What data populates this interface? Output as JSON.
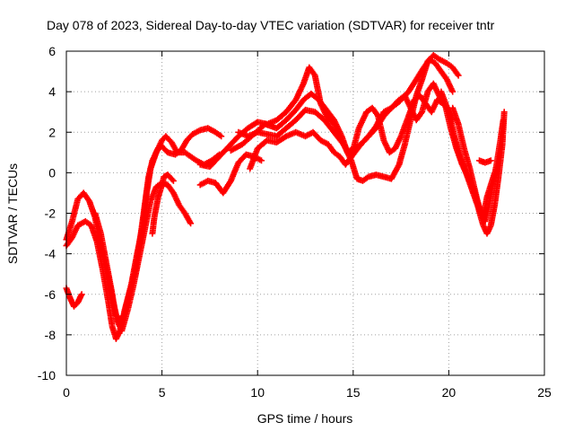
{
  "chart_data": {
    "type": "scatter",
    "title": "Day 078 of 2023, Sidereal Day-to-day VTEC variation (SDTVAR) for receiver tntr",
    "xlabel": "GPS time / hours",
    "ylabel": "SDTVAR / TECUs",
    "xlim": [
      0,
      25
    ],
    "ylim": [
      -10,
      6
    ],
    "xticks": [
      0,
      5,
      10,
      15,
      20,
      25
    ],
    "yticks": [
      -10,
      -8,
      -6,
      -4,
      -2,
      0,
      2,
      4,
      6
    ],
    "grid": true,
    "marker": "plus",
    "color": "#ff0000",
    "series": [
      {
        "points": [
          [
            0.0,
            -3.3
          ],
          [
            0.3,
            -2.4
          ],
          [
            0.6,
            -1.3
          ],
          [
            0.9,
            -1.0
          ],
          [
            1.2,
            -1.4
          ],
          [
            1.5,
            -2.2
          ],
          [
            1.8,
            -3.6
          ],
          [
            2.1,
            -4.8
          ],
          [
            2.4,
            -6.2
          ],
          [
            2.6,
            -7.0
          ],
          [
            2.8,
            -7.3
          ],
          [
            3.0,
            -7.0
          ],
          [
            3.3,
            -6.0
          ],
          [
            3.6,
            -4.8
          ],
          [
            3.9,
            -3.0
          ],
          [
            4.1,
            -1.6
          ],
          [
            4.3,
            -0.2
          ],
          [
            4.5,
            0.6
          ],
          [
            4.8,
            1.2
          ],
          [
            5.0,
            1.3
          ],
          [
            5.3,
            1.0
          ],
          [
            5.7,
            0.9
          ],
          [
            6.0,
            1.1
          ],
          [
            6.3,
            1.6
          ],
          [
            6.6,
            1.9
          ],
          [
            7.0,
            2.1
          ],
          [
            7.4,
            2.2
          ],
          [
            7.8,
            2.0
          ],
          [
            8.1,
            1.8
          ]
        ]
      },
      {
        "points": [
          [
            0.0,
            -3.6
          ],
          [
            0.3,
            -3.2
          ],
          [
            0.6,
            -2.6
          ],
          [
            1.0,
            -2.4
          ],
          [
            1.3,
            -2.6
          ],
          [
            1.6,
            -3.4
          ],
          [
            1.9,
            -4.8
          ],
          [
            2.2,
            -6.4
          ],
          [
            2.4,
            -7.6
          ],
          [
            2.6,
            -8.2
          ],
          [
            2.8,
            -7.8
          ],
          [
            3.1,
            -6.6
          ],
          [
            3.4,
            -5.5
          ],
          [
            3.7,
            -4.0
          ],
          [
            4.0,
            -2.6
          ],
          [
            4.2,
            -1.0
          ],
          [
            4.4,
            0.2
          ],
          [
            4.7,
            1.0
          ],
          [
            5.0,
            1.6
          ],
          [
            5.2,
            1.8
          ],
          [
            5.5,
            1.5
          ],
          [
            5.8,
            1.0
          ],
          [
            6.2,
            1.0
          ],
          [
            6.5,
            0.8
          ],
          [
            6.8,
            0.6
          ],
          [
            7.2,
            0.4
          ],
          [
            7.6,
            0.6
          ],
          [
            8.0,
            0.9
          ]
        ]
      },
      {
        "points": [
          [
            0.0,
            -5.7
          ],
          [
            0.2,
            -6.2
          ],
          [
            0.4,
            -6.6
          ],
          [
            0.6,
            -6.4
          ],
          [
            0.8,
            -6.0
          ]
        ]
      },
      {
        "points": [
          [
            1.5,
            -2.0
          ],
          [
            1.8,
            -3.0
          ],
          [
            2.1,
            -4.5
          ],
          [
            2.4,
            -6.0
          ],
          [
            2.6,
            -7.2
          ],
          [
            2.9,
            -7.8
          ],
          [
            3.2,
            -6.8
          ],
          [
            3.5,
            -5.6
          ],
          [
            3.8,
            -4.2
          ],
          [
            4.1,
            -2.8
          ],
          [
            4.4,
            -1.4
          ],
          [
            4.7,
            -0.7
          ],
          [
            5.0,
            -0.5
          ],
          [
            5.3,
            -0.6
          ],
          [
            5.6,
            -1.0
          ],
          [
            5.9,
            -1.6
          ],
          [
            6.2,
            -2.0
          ],
          [
            6.5,
            -2.5
          ]
        ]
      },
      {
        "points": [
          [
            4.5,
            -3.0
          ],
          [
            4.6,
            -2.2
          ],
          [
            4.8,
            -1.2
          ],
          [
            5.0,
            -0.6
          ],
          [
            5.1,
            -0.2
          ],
          [
            5.3,
            -0.1
          ],
          [
            5.6,
            -0.4
          ]
        ]
      },
      {
        "points": [
          [
            7.0,
            -0.6
          ],
          [
            7.4,
            -0.4
          ],
          [
            7.8,
            -0.5
          ],
          [
            8.2,
            -1.0
          ],
          [
            8.6,
            -0.4
          ],
          [
            9.0,
            0.5
          ],
          [
            9.4,
            0.9
          ],
          [
            9.8,
            0.8
          ],
          [
            10.2,
            0.6
          ]
        ]
      },
      {
        "points": [
          [
            7.0,
            0.4
          ],
          [
            7.5,
            0.3
          ],
          [
            8.0,
            0.8
          ],
          [
            8.5,
            1.3
          ],
          [
            9.0,
            1.8
          ],
          [
            9.5,
            2.2
          ],
          [
            10.0,
            2.5
          ],
          [
            10.5,
            2.4
          ],
          [
            11.0,
            2.6
          ],
          [
            11.5,
            3.0
          ],
          [
            12.0,
            3.6
          ],
          [
            12.4,
            4.4
          ],
          [
            12.7,
            5.2
          ],
          [
            13.0,
            4.8
          ],
          [
            13.3,
            3.4
          ],
          [
            13.6,
            2.8
          ],
          [
            14.0,
            2.4
          ],
          [
            14.3,
            1.8
          ],
          [
            14.6,
            1.2
          ],
          [
            14.9,
            0.6
          ],
          [
            15.2,
            -0.3
          ],
          [
            15.5,
            -0.4
          ],
          [
            15.8,
            -0.2
          ],
          [
            16.2,
            -0.1
          ],
          [
            16.6,
            -0.2
          ],
          [
            17.0,
            -0.3
          ],
          [
            17.4,
            0.4
          ],
          [
            17.7,
            1.4
          ],
          [
            18.0,
            2.6
          ],
          [
            18.3,
            3.8
          ],
          [
            18.6,
            4.6
          ],
          [
            18.9,
            5.5
          ],
          [
            19.2,
            5.8
          ],
          [
            19.5,
            5.6
          ],
          [
            19.9,
            5.4
          ],
          [
            20.2,
            5.2
          ],
          [
            20.5,
            4.8
          ]
        ]
      },
      {
        "points": [
          [
            8.6,
            1.1
          ],
          [
            9.2,
            1.4
          ],
          [
            9.8,
            1.9
          ],
          [
            10.4,
            2.4
          ],
          [
            11.0,
            2.2
          ],
          [
            11.5,
            2.6
          ],
          [
            12.0,
            3.1
          ],
          [
            12.4,
            3.6
          ],
          [
            12.8,
            3.9
          ],
          [
            13.2,
            3.6
          ],
          [
            13.6,
            3.1
          ],
          [
            14.0,
            2.6
          ],
          [
            14.4,
            1.8
          ],
          [
            14.7,
            1.0
          ],
          [
            15.0,
            1.2
          ],
          [
            15.4,
            1.4
          ],
          [
            15.8,
            1.8
          ],
          [
            16.2,
            2.2
          ],
          [
            16.6,
            2.8
          ],
          [
            17.0,
            3.2
          ],
          [
            17.4,
            3.6
          ],
          [
            17.7,
            3.8
          ],
          [
            18.0,
            3.2
          ],
          [
            18.3,
            2.6
          ],
          [
            18.6,
            3.0
          ],
          [
            18.9,
            4.0
          ],
          [
            19.2,
            4.4
          ],
          [
            19.5,
            3.8
          ],
          [
            19.9,
            3.2
          ],
          [
            20.2,
            2.6
          ]
        ]
      },
      {
        "points": [
          [
            9.0,
            2.0
          ],
          [
            9.5,
            1.8
          ],
          [
            10.0,
            2.0
          ],
          [
            10.5,
            1.9
          ],
          [
            11.0,
            1.8
          ],
          [
            11.5,
            2.2
          ],
          [
            12.0,
            2.6
          ],
          [
            12.5,
            3.1
          ],
          [
            13.0,
            3.0
          ],
          [
            13.5,
            2.6
          ],
          [
            14.0,
            2.0
          ],
          [
            14.5,
            1.4
          ],
          [
            14.9,
            0.8
          ],
          [
            15.3,
            2.2
          ],
          [
            15.7,
            3.0
          ],
          [
            16.0,
            3.2
          ],
          [
            16.3,
            2.8
          ],
          [
            16.6,
            1.6
          ],
          [
            16.9,
            1.0
          ],
          [
            17.2,
            1.2
          ],
          [
            17.5,
            1.8
          ],
          [
            17.9,
            2.8
          ],
          [
            18.2,
            3.6
          ],
          [
            18.5,
            3.8
          ],
          [
            18.8,
            3.4
          ],
          [
            19.1,
            3.0
          ],
          [
            19.4,
            3.6
          ],
          [
            19.7,
            3.4
          ]
        ]
      },
      {
        "points": [
          [
            9.6,
            0.2
          ],
          [
            10.0,
            1.2
          ],
          [
            10.5,
            1.6
          ],
          [
            11.0,
            1.5
          ],
          [
            11.5,
            1.8
          ],
          [
            12.0,
            2.0
          ],
          [
            12.5,
            1.8
          ],
          [
            12.9,
            2.0
          ],
          [
            13.3,
            1.6
          ],
          [
            13.7,
            1.4
          ],
          [
            14.0,
            1.0
          ],
          [
            14.3,
            0.8
          ],
          [
            14.6,
            0.4
          ],
          [
            15.0,
            0.9
          ],
          [
            15.4,
            1.4
          ],
          [
            15.8,
            1.8
          ],
          [
            16.2,
            2.3
          ],
          [
            16.6,
            3.0
          ],
          [
            17.0,
            3.2
          ],
          [
            17.4,
            3.5
          ],
          [
            17.9,
            4.0
          ],
          [
            18.3,
            4.6
          ],
          [
            18.7,
            5.2
          ],
          [
            19.0,
            5.6
          ],
          [
            19.3,
            5.4
          ],
          [
            19.6,
            5.0
          ],
          [
            19.9,
            4.6
          ],
          [
            20.2,
            4.0
          ]
        ]
      },
      {
        "points": [
          [
            19.6,
            4.0
          ],
          [
            20.0,
            3.0
          ],
          [
            20.3,
            1.8
          ],
          [
            20.6,
            0.8
          ],
          [
            20.9,
            0.0
          ],
          [
            21.2,
            -0.8
          ],
          [
            21.5,
            -1.6
          ],
          [
            21.8,
            -2.6
          ],
          [
            22.0,
            -3.0
          ],
          [
            22.2,
            -2.6
          ],
          [
            22.4,
            -1.6
          ],
          [
            22.6,
            -0.2
          ],
          [
            22.8,
            1.4
          ],
          [
            22.9,
            3.0
          ]
        ]
      },
      {
        "points": [
          [
            19.8,
            3.4
          ],
          [
            20.1,
            2.2
          ],
          [
            20.4,
            1.2
          ],
          [
            20.7,
            0.4
          ],
          [
            21.0,
            -0.2
          ],
          [
            21.3,
            -0.8
          ],
          [
            21.5,
            -1.4
          ],
          [
            21.7,
            -2.0
          ],
          [
            21.9,
            -2.4
          ],
          [
            22.1,
            -1.6
          ],
          [
            22.3,
            -0.6
          ],
          [
            22.5,
            0.4
          ],
          [
            22.7,
            1.6
          ],
          [
            22.85,
            2.6
          ]
        ]
      },
      {
        "points": [
          [
            20.2,
            3.2
          ],
          [
            20.5,
            2.4
          ],
          [
            20.8,
            1.2
          ],
          [
            21.1,
            0.2
          ],
          [
            21.4,
            -1.0
          ],
          [
            21.6,
            -1.8
          ],
          [
            21.8,
            -2.2
          ],
          [
            22.0,
            -1.2
          ],
          [
            22.2,
            -0.6
          ],
          [
            22.4,
            0.0
          ]
        ]
      },
      {
        "points": [
          [
            21.6,
            0.6
          ],
          [
            21.9,
            0.5
          ],
          [
            22.2,
            0.6
          ]
        ]
      }
    ]
  }
}
